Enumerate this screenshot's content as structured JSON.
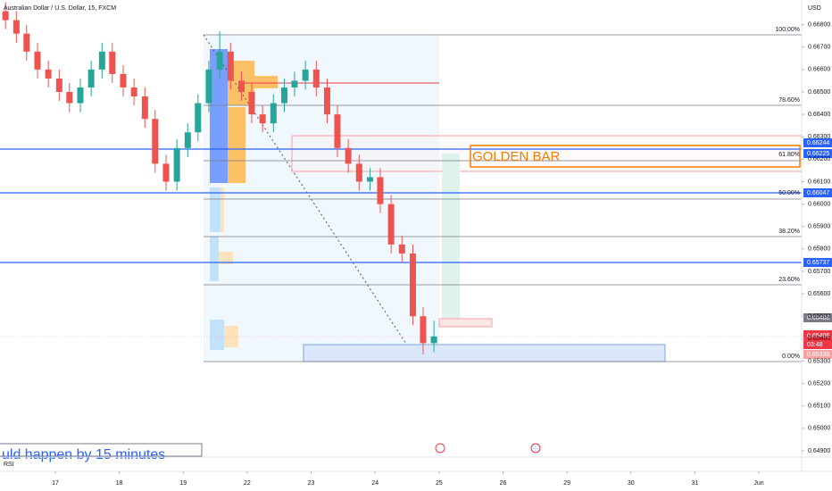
{
  "chart_data": {
    "type": "candlestick",
    "title": "Australian Dollar / U.S. Dollar, 15, FXCM",
    "currency": "USD",
    "x": [
      -0.78,
      -0.61,
      -0.45,
      -0.28,
      -0.11,
      0.06,
      0.22,
      0.39,
      0.56,
      0.73,
      0.89,
      1.06,
      1.23,
      1.4,
      1.56,
      1.73,
      1.9,
      2.07,
      2.23,
      2.4,
      2.57,
      2.74,
      2.91,
      3.07,
      3.24,
      3.41,
      3.58,
      3.74,
      3.91,
      4.08,
      4.25,
      4.41,
      4.58,
      4.75,
      4.92,
      5.08,
      5.25,
      5.42,
      5.59,
      5.75,
      5.92
    ],
    "open": [
      0.6686,
      0.6682,
      0.6676,
      0.6668,
      0.666,
      0.6656,
      0.665,
      0.6645,
      0.6652,
      0.666,
      0.6668,
      0.6658,
      0.6652,
      0.6648,
      0.6638,
      0.6618,
      0.661,
      0.6625,
      0.6632,
      0.6645,
      0.666,
      0.6668,
      0.6655,
      0.665,
      0.664,
      0.6636,
      0.6645,
      0.6652,
      0.6655,
      0.666,
      0.6652,
      0.664,
      0.6625,
      0.6618,
      0.661,
      0.6612,
      0.66,
      0.6582,
      0.6578,
      0.655,
      0.6538
    ],
    "high": [
      0.669,
      0.6686,
      0.668,
      0.6672,
      0.6664,
      0.666,
      0.6654,
      0.6656,
      0.6664,
      0.6672,
      0.6672,
      0.6662,
      0.6656,
      0.6652,
      0.6642,
      0.6622,
      0.6629,
      0.6636,
      0.6649,
      0.6664,
      0.6677,
      0.6672,
      0.6659,
      0.6654,
      0.6644,
      0.6649,
      0.6656,
      0.6659,
      0.6664,
      0.6664,
      0.6656,
      0.6644,
      0.6629,
      0.6622,
      0.6616,
      0.6616,
      0.6604,
      0.6586,
      0.6582,
      0.6554,
      0.6548
    ],
    "low": [
      0.6678,
      0.6672,
      0.6664,
      0.6656,
      0.6652,
      0.6646,
      0.6641,
      0.6641,
      0.6648,
      0.6656,
      0.6654,
      0.6648,
      0.6644,
      0.6634,
      0.6614,
      0.6606,
      0.6606,
      0.6621,
      0.6628,
      0.6641,
      0.6656,
      0.6651,
      0.6646,
      0.6636,
      0.6632,
      0.6632,
      0.6641,
      0.6648,
      0.6651,
      0.6648,
      0.6636,
      0.6621,
      0.6614,
      0.6606,
      0.6606,
      0.6596,
      0.6578,
      0.6574,
      0.6546,
      0.6533,
      0.6534
    ],
    "close": [
      0.6682,
      0.6676,
      0.6668,
      0.666,
      0.6656,
      0.665,
      0.6645,
      0.6652,
      0.666,
      0.6668,
      0.6658,
      0.6652,
      0.6648,
      0.6638,
      0.6618,
      0.661,
      0.6625,
      0.6632,
      0.6645,
      0.666,
      0.6668,
      0.6655,
      0.665,
      0.664,
      0.6636,
      0.6645,
      0.6652,
      0.6655,
      0.666,
      0.6652,
      0.664,
      0.6625,
      0.6618,
      0.661,
      0.6612,
      0.66,
      0.6582,
      0.6578,
      0.655,
      0.6538,
      0.6541
    ],
    "up_color": "#26a69a",
    "down_color": "#ef5350",
    "xlim": [
      -0.866,
      11.67
    ],
    "xticks": [
      {
        "value": 0,
        "label": "17"
      },
      {
        "value": 1,
        "label": "18"
      },
      {
        "value": 2,
        "label": "19"
      },
      {
        "value": 3,
        "label": "22"
      },
      {
        "value": 4,
        "label": "23"
      },
      {
        "value": 5,
        "label": "24"
      },
      {
        "value": 6,
        "label": "25"
      },
      {
        "value": 7,
        "label": "26"
      },
      {
        "value": 8,
        "label": "29"
      },
      {
        "value": 9,
        "label": "30"
      },
      {
        "value": 10,
        "label": "31"
      },
      {
        "value": 11,
        "label": "Jun"
      }
    ],
    "ylim": [
      0.6488,
      0.6691
    ],
    "yticks": [
      {
        "value": 0.649,
        "label": "0.64900"
      },
      {
        "value": 0.65,
        "label": "0.65000"
      },
      {
        "value": 0.651,
        "label": "0.65100"
      },
      {
        "value": 0.652,
        "label": "0.65200"
      },
      {
        "value": 0.653,
        "label": "0.65300"
      },
      {
        "value": 0.654,
        "label": "0.65400"
      },
      {
        "value": 0.655,
        "label": "0.65500"
      },
      {
        "value": 0.656,
        "label": "0.65600"
      },
      {
        "value": 0.657,
        "label": "0.65700"
      },
      {
        "value": 0.658,
        "label": "0.65800"
      },
      {
        "value": 0.659,
        "label": "0.65900"
      },
      {
        "value": 0.66,
        "label": "0.66000"
      },
      {
        "value": 0.661,
        "label": "0.66100"
      },
      {
        "value": 0.662,
        "label": "0.66200"
      },
      {
        "value": 0.663,
        "label": "0.66300"
      },
      {
        "value": 0.664,
        "label": "0.66400"
      },
      {
        "value": 0.665,
        "label": "0.66500"
      },
      {
        "value": 0.666,
        "label": "0.66600"
      },
      {
        "value": 0.667,
        "label": "0.66700"
      },
      {
        "value": 0.668,
        "label": "0.66800"
      }
    ]
  },
  "fib_levels": [
    "100.00%",
    "78.60%",
    "61.80%",
    "50.00%",
    "38.20%",
    "23.60%",
    "0.00%"
  ],
  "price_tags": [
    "0.66244",
    "0.66225",
    "0.66047",
    "0.65737",
    "0.65488",
    "0.65406",
    "03:48",
    "0.65338"
  ],
  "annotations": {
    "golden_bar": "GOLDEN BAR",
    "note": "uld happen by 15 minutes",
    "indicator": "RSI"
  }
}
